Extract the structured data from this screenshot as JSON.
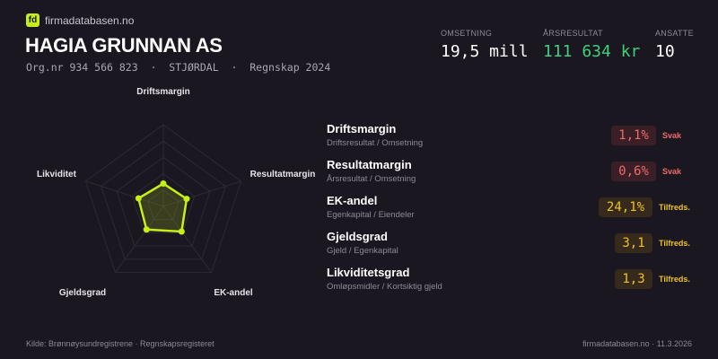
{
  "brand": {
    "logo": "fd",
    "site": "firmadatabasen.no"
  },
  "company": {
    "name": "HAGIA GRUNNAN AS",
    "subtitle": "Org.nr 934 566 823  ·  STJØRDAL  ·  Regnskap 2024"
  },
  "kpis": [
    {
      "label": "OMSETNING",
      "value": "19,5 mill",
      "color": "#ffffff"
    },
    {
      "label": "ÅRSRESULTAT",
      "value": "111 634 kr",
      "color": "#3fd07a"
    },
    {
      "label": "ANSATTE",
      "value": "10",
      "color": "#ffffff"
    }
  ],
  "radar": {
    "axes": [
      "Driftsmargin",
      "Resultatmargin",
      "EK-andel",
      "Gjeldsgrad",
      "Likviditet"
    ],
    "values": [
      0.28,
      0.3,
      0.38,
      0.35,
      0.32
    ],
    "rings": 5,
    "accent": "#c6ef1a"
  },
  "metrics": [
    {
      "name": "Driftsmargin",
      "formula": "Driftsresultat / Omsetning",
      "value": "1,1%",
      "status": "Svak",
      "color": "#ef6b6b",
      "bg": "#3a1f26"
    },
    {
      "name": "Resultatmargin",
      "formula": "Årsresultat / Omsetning",
      "value": "0,6%",
      "status": "Svak",
      "color": "#ef6b6b",
      "bg": "#3a1f26"
    },
    {
      "name": "EK-andel",
      "formula": "Egenkapital / Eiendeler",
      "value": "24,1%",
      "status": "Tilfreds.",
      "color": "#f2c21b",
      "bg": "#352a1c"
    },
    {
      "name": "Gjeldsgrad",
      "formula": "Gjeld / Egenkapital",
      "value": "3,1",
      "status": "Tilfreds.",
      "color": "#f2c21b",
      "bg": "#352a1c"
    },
    {
      "name": "Likviditetsgrad",
      "formula": "Omløpsmidler / Kortsiktig gjeld",
      "value": "1,3",
      "status": "Tilfreds.",
      "color": "#f2c21b",
      "bg": "#352a1c"
    }
  ],
  "footer": {
    "source": "Kilde: Brønnøysundregistrene · Regnskapsregisteret",
    "right": "firmadatabasen.no · 11.3.2026"
  }
}
